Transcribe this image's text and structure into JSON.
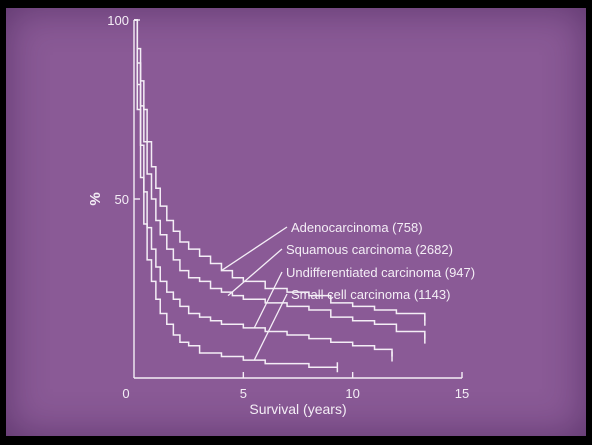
{
  "chart_data": {
    "type": "line",
    "subtype": "step (survival curves)",
    "title": "",
    "xlabel": "Survival (years)",
    "ylabel": "%",
    "xlim": [
      0,
      15
    ],
    "ylim": [
      0,
      100
    ],
    "x_ticks": [
      "0",
      "5",
      "10",
      "15"
    ],
    "y_ticks": [
      "50",
      "100"
    ],
    "grid": false,
    "colors": {
      "background": "#8a5a96",
      "foreground": "#f4eef6"
    },
    "series": [
      {
        "name": "Adenocarcinoma (758)",
        "x": [
          0,
          0.15,
          0.3,
          0.45,
          0.6,
          0.8,
          1.0,
          1.2,
          1.5,
          1.8,
          2.1,
          2.5,
          3.0,
          3.5,
          4.0,
          4.5,
          5.0,
          6.0,
          7.0,
          8.0,
          9.0,
          10.0,
          11.0,
          12.0,
          13.3
        ],
        "y": [
          100,
          92,
          83,
          75,
          66,
          59,
          53,
          48,
          44,
          41,
          38,
          36,
          34,
          32,
          30,
          28,
          27,
          25,
          24,
          23,
          21,
          20,
          19,
          18,
          16
        ]
      },
      {
        "name": "Squamous carcinoma (2682)",
        "x": [
          0,
          0.15,
          0.3,
          0.45,
          0.6,
          0.8,
          1.0,
          1.2,
          1.5,
          1.8,
          2.1,
          2.5,
          3.0,
          3.5,
          4.0,
          4.5,
          5.0,
          6.0,
          7.0,
          8.0,
          9.0,
          10.0,
          11.0,
          12.0,
          13.3
        ],
        "y": [
          100,
          88,
          76,
          66,
          57,
          50,
          44,
          40,
          36,
          33,
          30,
          28,
          27,
          25,
          24,
          23,
          22,
          21,
          20,
          19,
          17,
          16,
          15,
          13,
          11
        ]
      },
      {
        "name": "Undifferentiated carcinoma (947)",
        "x": [
          0,
          0.15,
          0.3,
          0.45,
          0.6,
          0.8,
          1.0,
          1.2,
          1.5,
          1.8,
          2.1,
          2.5,
          3.0,
          3.5,
          4.0,
          5.0,
          6.0,
          7.0,
          8.0,
          9.0,
          10.0,
          11.0,
          11.8
        ],
        "y": [
          100,
          82,
          65,
          52,
          42,
          36,
          31,
          27,
          24,
          22,
          20,
          18,
          17,
          16,
          15,
          14,
          13,
          12,
          11,
          10,
          9,
          8,
          6
        ]
      },
      {
        "name": "Small cell carcinoma (1143)",
        "x": [
          0,
          0.15,
          0.3,
          0.45,
          0.6,
          0.8,
          1.0,
          1.2,
          1.5,
          1.8,
          2.1,
          2.5,
          3.0,
          4.0,
          5.0,
          6.0,
          7.0,
          8.0,
          9.3
        ],
        "y": [
          100,
          75,
          56,
          43,
          33,
          27,
          22,
          18,
          15,
          12,
          10,
          9,
          7,
          6,
          5,
          4,
          4,
          3,
          3
        ]
      }
    ],
    "labels": [
      {
        "text": "Adenocarcinoma (758)",
        "points_to": {
          "x": 4.0,
          "y": 30
        }
      },
      {
        "text": "Squamous carcinoma (2682)",
        "points_to": {
          "x": 4.3,
          "y": 23
        }
      },
      {
        "text": "Undifferentiated carcinoma (947)",
        "points_to": {
          "x": 5.5,
          "y": 14
        }
      },
      {
        "text": "Small cell carcinoma (1143)",
        "points_to": {
          "x": 5.5,
          "y": 5
        }
      }
    ]
  }
}
